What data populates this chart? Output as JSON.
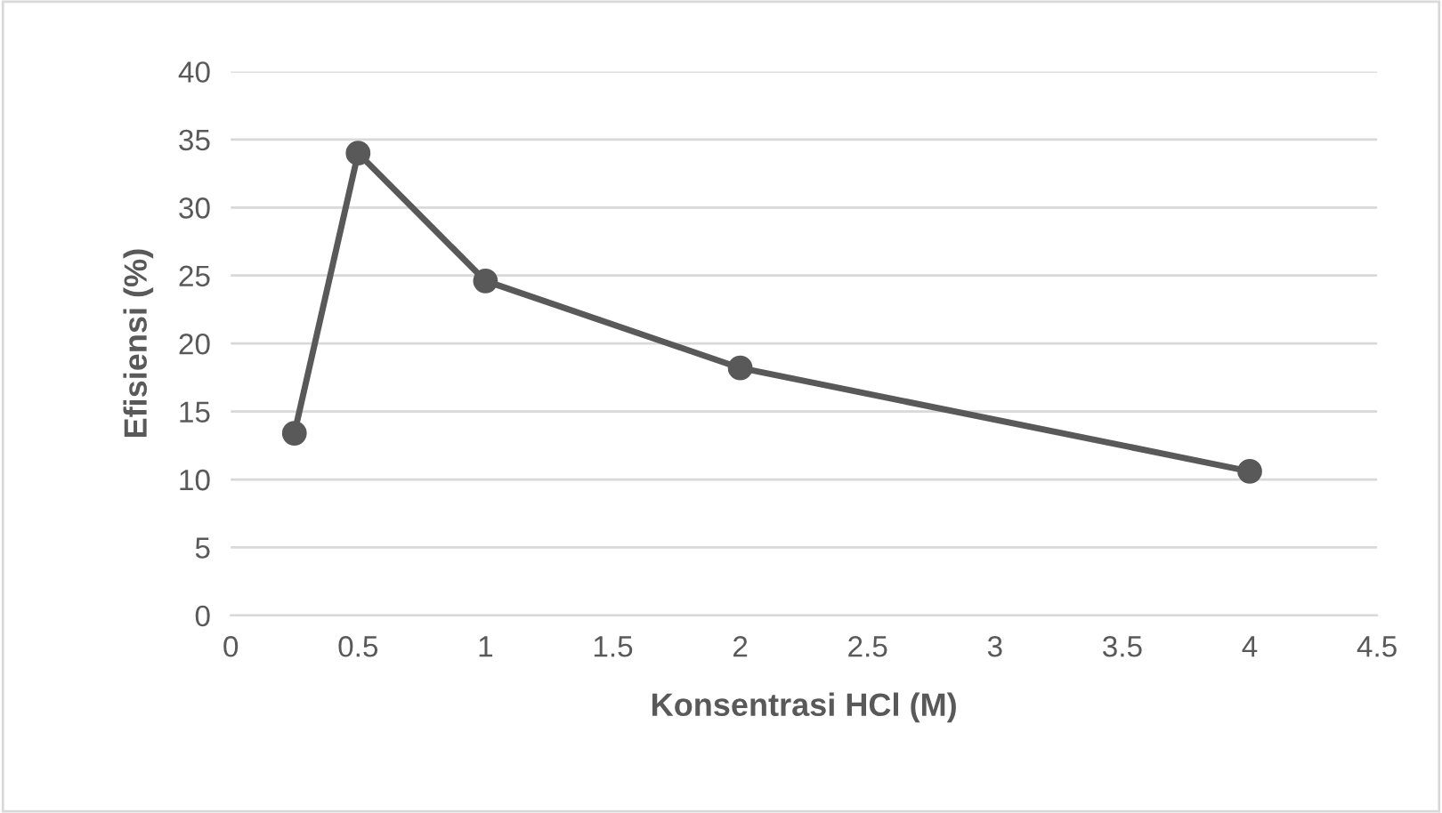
{
  "chart_data": {
    "type": "line",
    "xlabel": "Konsentrasi HCl (M)",
    "ylabel": "Efisiensi (%)",
    "x": [
      0.25,
      0.5,
      1,
      2,
      4
    ],
    "series": [
      {
        "color": "#595959",
        "values": [
          13.4,
          34.0,
          24.6,
          18.2,
          10.6
        ]
      }
    ],
    "xlim": [
      0,
      4.5
    ],
    "xticks": [
      0,
      0.5,
      1,
      1.5,
      2,
      2.5,
      3,
      3.5,
      4,
      4.5
    ],
    "ylim": [
      0,
      40
    ],
    "yticks": [
      0,
      5,
      10,
      15,
      20,
      25,
      30,
      35,
      40
    ],
    "grid": "y",
    "marker": "circle",
    "line_style": "solid",
    "legend": false
  }
}
